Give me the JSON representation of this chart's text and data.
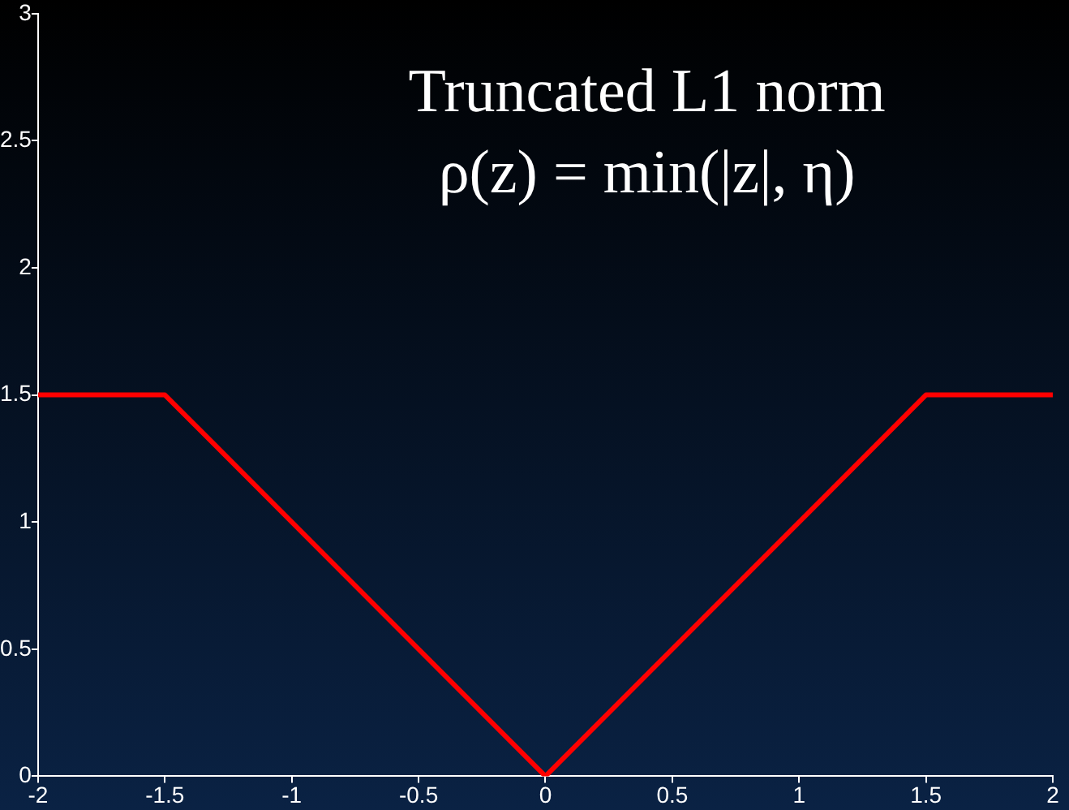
{
  "chart_data": {
    "type": "line",
    "title": "Truncated L1 norm",
    "subtitle": "ρ(z) = min(|z|, η)",
    "x": [
      -2,
      -1.5,
      0,
      1.5,
      2
    ],
    "series": [
      {
        "color": "#ff0000",
        "values": [
          1.5,
          1.5,
          0,
          1.5,
          1.5
        ]
      }
    ],
    "xlim": [
      -2,
      2
    ],
    "xticks": [
      -2,
      -1.5,
      -1,
      -0.5,
      0,
      0.5,
      1,
      1.5,
      2
    ],
    "ylim": [
      0,
      3
    ],
    "yticks": [
      0,
      0.5,
      1,
      1.5,
      2,
      2.5,
      3
    ],
    "grid": false,
    "legend": false,
    "marker": "none",
    "line_style": "solid"
  }
}
